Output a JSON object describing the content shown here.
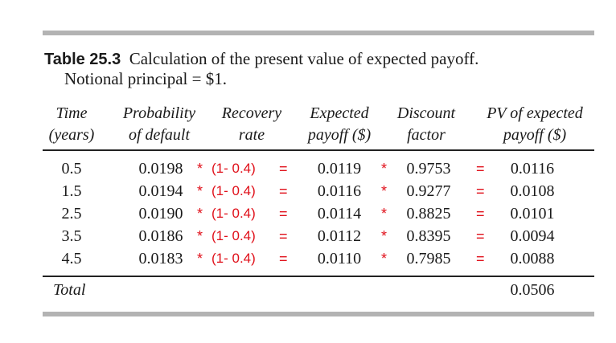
{
  "caption": {
    "label": "Table 25.3",
    "title": "Calculation of the present value of expected payoff.",
    "subtitle": "Notional principal = $1."
  },
  "headers": {
    "time": [
      "Time",
      "(years)"
    ],
    "probability": [
      "Probability",
      "of default"
    ],
    "recovery": [
      "Recovery",
      "rate"
    ],
    "expected": [
      "Expected",
      "payoff ($)"
    ],
    "discount": [
      "Discount",
      "factor"
    ],
    "pv": [
      "PV of expected",
      "payoff ($)"
    ]
  },
  "annotation": {
    "multiply": "*",
    "recovery_expr": "(1- 0.4)",
    "equals": "="
  },
  "rows": [
    {
      "time": "0.5",
      "probability": "0.0198",
      "expected": "0.0119",
      "discount": "0.9753",
      "pv": "0.0116"
    },
    {
      "time": "1.5",
      "probability": "0.0194",
      "expected": "0.0116",
      "discount": "0.9277",
      "pv": "0.0108"
    },
    {
      "time": "2.5",
      "probability": "0.0190",
      "expected": "0.0114",
      "discount": "0.8825",
      "pv": "0.0101"
    },
    {
      "time": "3.5",
      "probability": "0.0186",
      "expected": "0.0112",
      "discount": "0.8395",
      "pv": "0.0094"
    },
    {
      "time": "4.5",
      "probability": "0.0183",
      "expected": "0.0110",
      "discount": "0.7985",
      "pv": "0.0088"
    }
  ],
  "total": {
    "label": "Total",
    "value": "0.0506"
  }
}
